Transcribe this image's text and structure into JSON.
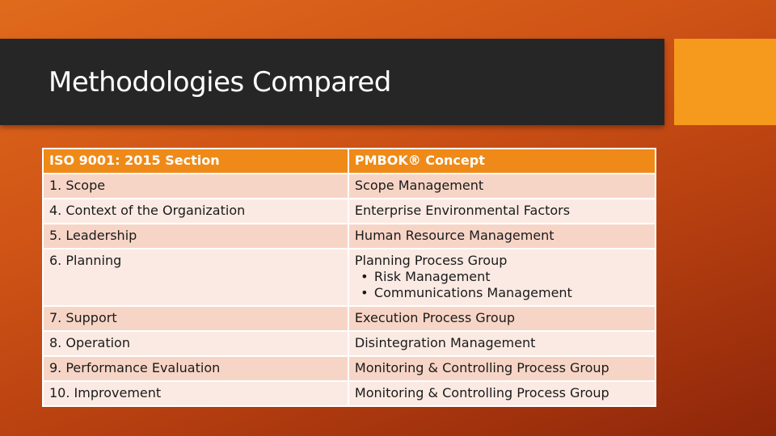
{
  "slide": {
    "title": "Methodologies Compared"
  },
  "table": {
    "headers": [
      "ISO 9001: 2015 Section",
      "PMBOK® Concept"
    ],
    "rows": [
      {
        "section": "1. Scope",
        "concept": "Scope Management"
      },
      {
        "section": "4. Context of the Organization",
        "concept": "Enterprise Environmental Factors"
      },
      {
        "section": "5. Leadership",
        "concept": "Human Resource Management"
      },
      {
        "section": "6. Planning",
        "concept": "Planning Process Group",
        "bullets": [
          "Risk Management",
          "Communications Management"
        ]
      },
      {
        "section": "7. Support",
        "concept": "Execution Process Group"
      },
      {
        "section": "8. Operation",
        "concept": "Disintegration Management"
      },
      {
        "section": "9. Performance Evaluation",
        "concept": "Monitoring & Controlling Process Group"
      },
      {
        "section": "10. Improvement",
        "concept": "Monitoring & Controlling Process Group"
      }
    ]
  },
  "colors": {
    "title_bar": "#262626",
    "accent": "#f59a1c",
    "header_row": "#ef8a18",
    "row_odd": "#f7d5c6",
    "row_even": "#fbeae3"
  }
}
